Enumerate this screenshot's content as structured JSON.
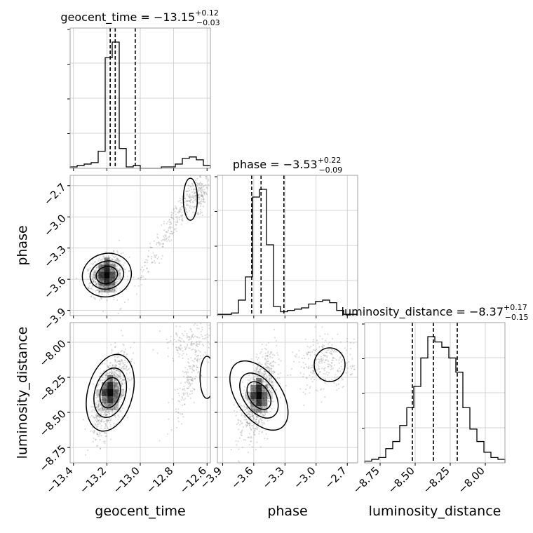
{
  "chart_data": {
    "type": "corner",
    "parameters": [
      "geocent_time",
      "phase",
      "luminosity_distance"
    ],
    "titles": [
      {
        "param": "geocent_time",
        "label": "geocent_time",
        "median": "−13.15",
        "upper": "+0.12",
        "lower": "−0.03"
      },
      {
        "param": "phase",
        "label": "phase",
        "median": "−3.53",
        "upper": "+0.22",
        "lower": "−0.09"
      },
      {
        "param": "luminosity_distance",
        "label": "luminosity_distance",
        "median": "−8.37",
        "upper": "+0.17",
        "lower": "−0.15"
      }
    ],
    "axes": {
      "geocent_time": {
        "range": [
          -13.42,
          -12.58
        ],
        "ticks": [
          -13.4,
          -13.2,
          -13.0,
          -12.8,
          -12.6
        ],
        "tick_labels": [
          "−13.4",
          "−13.2",
          "−13.0",
          "−12.8",
          "−12.6"
        ]
      },
      "phase": {
        "range": [
          -3.95,
          -2.6
        ],
        "ticks": [
          -3.9,
          -3.6,
          -3.3,
          -3.0,
          -2.7
        ],
        "tick_labels": [
          "−3.9",
          "−3.6",
          "−3.3",
          "−3.0",
          "−2.7"
        ]
      },
      "luminosity_distance": {
        "range": [
          -8.86,
          -7.86
        ],
        "ticks": [
          -8.75,
          -8.5,
          -8.25,
          -8.0
        ],
        "tick_labels": [
          "−8.75",
          "−8.50",
          "−8.25",
          "−8.00"
        ]
      }
    },
    "quantiles": {
      "geocent_time": [
        -13.18,
        -13.15,
        -13.03
      ],
      "phase": [
        -3.62,
        -3.53,
        -3.31
      ],
      "luminosity_distance": [
        -8.52,
        -8.37,
        -8.2
      ]
    },
    "histograms": {
      "geocent_time": {
        "edges_range": [
          -13.42,
          -12.58
        ],
        "counts": [
          1,
          2,
          3,
          4,
          12,
          78,
          89,
          14,
          1,
          2,
          0,
          0,
          0,
          1,
          1,
          3,
          7,
          8,
          6,
          2
        ]
      },
      "phase": {
        "edges_range": [
          -3.95,
          -2.6
        ],
        "counts": [
          1,
          1,
          2,
          12,
          30,
          92,
          98,
          55,
          7,
          3,
          4,
          5,
          6,
          9,
          11,
          12,
          10,
          4,
          1,
          1
        ]
      },
      "luminosity_distance": {
        "edges_range": [
          -8.86,
          -7.86
        ],
        "counts": [
          1,
          2,
          3,
          8,
          12,
          21,
          31,
          43,
          59,
          71,
          68,
          65,
          59,
          51,
          31,
          19,
          12,
          6,
          3,
          2
        ]
      }
    },
    "grid": true,
    "style": {
      "line_color": "#000000",
      "point_color": "#808080",
      "grid_color": "#c8c8c8"
    }
  }
}
